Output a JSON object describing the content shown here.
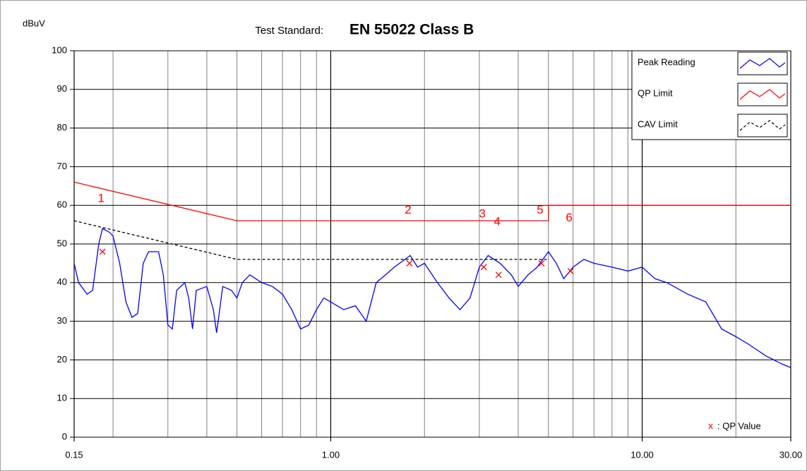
{
  "chart_data": {
    "type": "line",
    "y_label": "dBuV",
    "title_prefix": "Test Standard:",
    "title": "EN 55022 Class B",
    "log_x": true,
    "grid": true,
    "legend": "upper right",
    "xlim": [
      0.15,
      30
    ],
    "xticks": [
      0.15,
      {
        "value": 1,
        "label": "1.00"
      },
      {
        "value": 10,
        "label": "10.00"
      },
      {
        "value": 30,
        "label": "30.00"
      }
    ],
    "xminor": [
      0.2,
      0.3,
      0.4,
      0.5,
      0.6,
      0.7,
      0.8,
      0.9,
      2,
      3,
      4,
      5,
      6,
      7,
      8,
      9,
      20
    ],
    "ylim": [
      0,
      100
    ],
    "yticks": [
      0,
      10,
      20,
      30,
      40,
      50,
      60,
      70,
      80,
      90,
      100
    ],
    "series": [
      {
        "name": "Peak Reading",
        "color": "#0000ff",
        "x": [
          0.15,
          0.155,
          0.165,
          0.172,
          0.18,
          0.185,
          0.195,
          0.2,
          0.21,
          0.22,
          0.23,
          0.24,
          0.25,
          0.26,
          0.28,
          0.29,
          0.3,
          0.31,
          0.32,
          0.34,
          0.35,
          0.36,
          0.37,
          0.4,
          0.42,
          0.43,
          0.45,
          0.48,
          0.5,
          0.52,
          0.55,
          0.6,
          0.65,
          0.7,
          0.75,
          0.8,
          0.85,
          0.9,
          0.95,
          1.0,
          1.1,
          1.2,
          1.3,
          1.4,
          1.5,
          1.6,
          1.8,
          1.9,
          2.0,
          2.2,
          2.4,
          2.6,
          2.8,
          3.0,
          3.2,
          3.5,
          3.8,
          4.0,
          4.3,
          4.6,
          5.0,
          5.3,
          5.6,
          6.0,
          6.5,
          7,
          8,
          9,
          10,
          11,
          12,
          14,
          16,
          18,
          20,
          22,
          25,
          28,
          30
        ],
        "values": [
          45,
          40,
          37,
          38,
          50,
          54,
          53,
          52,
          45,
          35,
          31,
          32,
          45,
          48,
          48,
          42,
          29,
          28,
          38,
          40,
          36,
          28,
          38,
          39,
          33,
          27,
          39,
          38,
          36,
          40,
          42,
          40,
          39,
          37,
          33,
          28,
          29,
          33,
          36,
          35,
          33,
          34,
          30,
          40,
          42,
          44,
          47,
          44,
          45,
          40,
          36,
          33,
          36,
          44,
          47,
          45,
          42,
          39,
          42,
          44,
          48,
          45,
          41,
          44,
          46,
          45,
          44,
          43,
          44,
          41,
          40,
          37,
          35,
          28,
          26,
          24,
          21,
          19,
          18
        ]
      },
      {
        "name": "QP Limit",
        "color": "#ff0000",
        "dashed": false,
        "x": [
          0.15,
          0.5,
          5,
          5,
          30
        ],
        "values": [
          66,
          56,
          56,
          60,
          60
        ]
      },
      {
        "name": "CAV Limit",
        "color": "#000000",
        "dashed": true,
        "x": [
          0.15,
          0.5,
          5
        ],
        "values": [
          56,
          46,
          46
        ]
      }
    ],
    "markers": [
      {
        "label": "1",
        "x": 0.185,
        "value": 48
      },
      {
        "label": "2",
        "x": 1.79,
        "value": 45
      },
      {
        "label": "3",
        "x": 3.1,
        "value": 44
      },
      {
        "label": "4",
        "x": 3.46,
        "value": 42
      },
      {
        "label": "5",
        "x": 4.75,
        "value": 45
      },
      {
        "label": "6",
        "x": 5.89,
        "value": 43
      }
    ],
    "marker_color": "#ff0000",
    "marker_note": {
      "symbol": "x",
      "label": ": QP Value"
    }
  }
}
